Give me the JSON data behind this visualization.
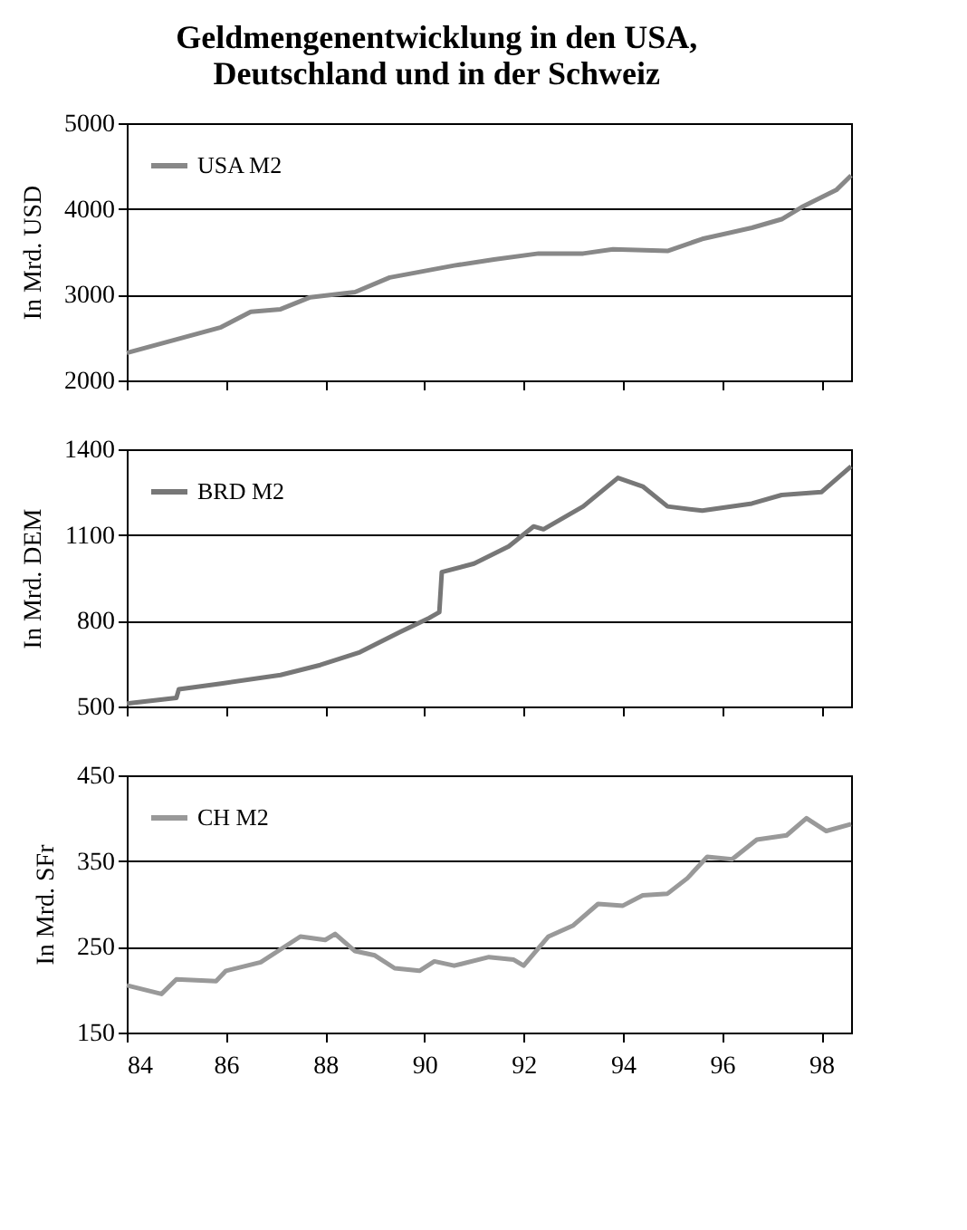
{
  "chart_data": [
    {
      "type": "line",
      "title": "Geldmengenentwicklung in den USA,\nDeutschland und in der Schweiz",
      "ylabel": "In Mrd. USD",
      "xlim": [
        84,
        98.6
      ],
      "xticks": [
        84,
        86,
        88,
        90,
        92,
        94,
        96,
        98
      ],
      "ylim": [
        2000,
        5000
      ],
      "yticks": [
        2000,
        3000,
        4000,
        5000
      ],
      "grid": "y",
      "legend": "top left",
      "tick_labels": "y",
      "x": [
        84,
        85.9,
        86.5,
        87.1,
        87.7,
        88.6,
        89.3,
        90.6,
        91.4,
        92.3,
        93.2,
        93.8,
        94.9,
        95.6,
        96.6,
        97.2,
        97.6,
        98.3,
        98.6
      ],
      "series": [
        {
          "name": "USA M2",
          "color": "#888888",
          "values": [
            2320,
            2620,
            2800,
            2830,
            2970,
            3030,
            3200,
            3340,
            3410,
            3480,
            3480,
            3530,
            3510,
            3650,
            3780,
            3880,
            4020,
            4220,
            4390
          ]
        }
      ]
    },
    {
      "type": "line",
      "ylabel": "In Mrd. DEM",
      "xlim": [
        84,
        98.6
      ],
      "xticks": [
        84,
        86,
        88,
        90,
        92,
        94,
        96,
        98
      ],
      "ylim": [
        500,
        1400
      ],
      "yticks": [
        500,
        800,
        1100,
        1400
      ],
      "grid": "y",
      "legend": "top left",
      "tick_labels": "y",
      "x": [
        84,
        85,
        85.05,
        85.9,
        87.1,
        87.9,
        88.7,
        89.5,
        90.1,
        90.3,
        90.35,
        91,
        91.7,
        92.2,
        92.4,
        93.2,
        93.9,
        94.4,
        94.9,
        95.6,
        96.6,
        97.2,
        98,
        98.6
      ],
      "series": [
        {
          "name": "BRD M2",
          "color": "#777777",
          "values": [
            510,
            530,
            560,
            580,
            610,
            645,
            690,
            760,
            810,
            830,
            970,
            1000,
            1060,
            1130,
            1120,
            1200,
            1300,
            1270,
            1200,
            1185,
            1210,
            1240,
            1250,
            1340
          ]
        }
      ]
    },
    {
      "type": "line",
      "ylabel": "In Mrd. SFr",
      "xlim": [
        84,
        98.6
      ],
      "xticks": [
        84,
        86,
        88,
        90,
        92,
        94,
        96,
        98
      ],
      "ylim": [
        150,
        450
      ],
      "yticks": [
        150,
        250,
        350,
        450
      ],
      "grid": "y",
      "legend": "top left",
      "x": [
        84,
        84.7,
        85,
        85.8,
        86,
        86.7,
        87.5,
        88,
        88.2,
        88.6,
        89,
        89.4,
        89.9,
        90.2,
        90.6,
        91.3,
        91.8,
        92,
        92.5,
        93,
        93.5,
        94,
        94.4,
        94.9,
        95.3,
        95.7,
        96.2,
        96.7,
        97.3,
        97.7,
        98.1,
        98.6
      ],
      "series": [
        {
          "name": "CH M2",
          "color": "#999999",
          "values": [
            205,
            195,
            212,
            210,
            222,
            232,
            262,
            258,
            265,
            245,
            240,
            225,
            222,
            233,
            228,
            238,
            235,
            228,
            262,
            275,
            300,
            298,
            310,
            312,
            330,
            355,
            352,
            375,
            380,
            400,
            385,
            393
          ]
        }
      ]
    }
  ]
}
